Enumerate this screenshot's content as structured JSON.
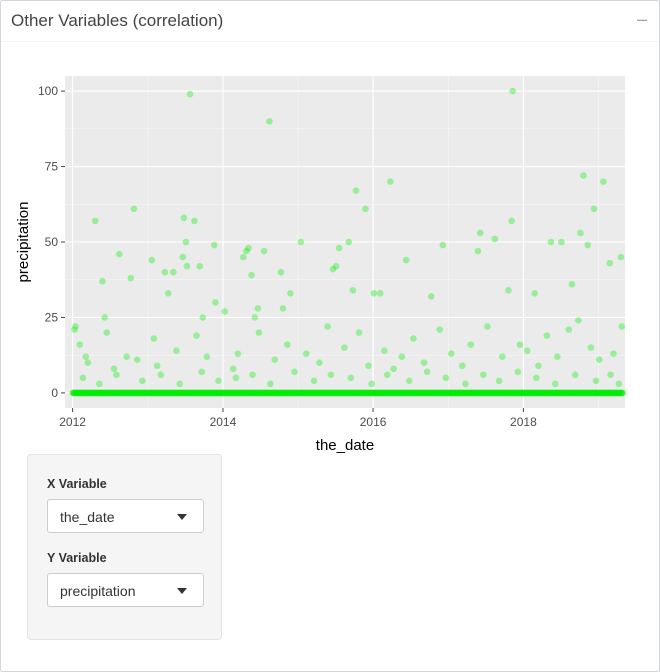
{
  "panel": {
    "title": "Other Variables (correlation)",
    "collapse_icon": "minus-icon"
  },
  "controls": {
    "x_label": "X Variable",
    "x_value": "the_date",
    "y_label": "Y Variable",
    "y_value": "precipitation"
  },
  "chart_data": {
    "type": "scatter",
    "xlabel": "the_date",
    "ylabel": "precipitation",
    "xlim": [
      "2011-11-25",
      "2019-05-10"
    ],
    "ylim": [
      -5,
      105
    ],
    "x_ticks": [
      "2012",
      "2014",
      "2016",
      "2018"
    ],
    "y_ticks": [
      0,
      25,
      50,
      75,
      100
    ],
    "grid": true,
    "point_color": "#00ee00",
    "point_opacity": 0.35,
    "panel_background": "#ebebeb",
    "points": [
      [
        "2012-01-10",
        21
      ],
      [
        "2012-01-15",
        22
      ],
      [
        "2012-02-05",
        16
      ],
      [
        "2012-03-05",
        12
      ],
      [
        "2012-04-20",
        57
      ],
      [
        "2012-05-25",
        37
      ],
      [
        "2012-06-05",
        25
      ],
      [
        "2012-06-15",
        20
      ],
      [
        "2012-08-15",
        46
      ],
      [
        "2012-09-20",
        12
      ],
      [
        "2012-10-10",
        38
      ],
      [
        "2012-10-25",
        61
      ],
      [
        "2013-01-20",
        44
      ],
      [
        "2013-01-30",
        18
      ],
      [
        "2013-03-25",
        40
      ],
      [
        "2013-04-10",
        33
      ],
      [
        "2013-05-05",
        40
      ],
      [
        "2013-06-20",
        45
      ],
      [
        "2013-06-25",
        58
      ],
      [
        "2013-07-05",
        50
      ],
      [
        "2013-07-10",
        42
      ],
      [
        "2013-07-25",
        99
      ],
      [
        "2013-08-15",
        57
      ],
      [
        "2013-09-10",
        42
      ],
      [
        "2013-09-25",
        25
      ],
      [
        "2013-11-20",
        49
      ],
      [
        "2013-11-25",
        30
      ],
      [
        "2014-01-10",
        27
      ],
      [
        "2014-04-10",
        45
      ],
      [
        "2014-04-25",
        47
      ],
      [
        "2014-05-05",
        48
      ],
      [
        "2014-05-20",
        39
      ],
      [
        "2014-06-05",
        25
      ],
      [
        "2014-06-20",
        28
      ],
      [
        "2014-07-20",
        47
      ],
      [
        "2014-08-15",
        90
      ],
      [
        "2014-10-10",
        40
      ],
      [
        "2014-10-20",
        28
      ],
      [
        "2014-11-25",
        33
      ],
      [
        "2015-01-15",
        50
      ],
      [
        "2015-06-20",
        41
      ],
      [
        "2015-07-05",
        42
      ],
      [
        "2015-07-20",
        48
      ],
      [
        "2015-09-05",
        50
      ],
      [
        "2015-09-25",
        34
      ],
      [
        "2015-10-10",
        67
      ],
      [
        "2015-11-25",
        61
      ],
      [
        "2016-01-05",
        33
      ],
      [
        "2016-02-05",
        33
      ],
      [
        "2016-03-25",
        70
      ],
      [
        "2016-06-10",
        44
      ],
      [
        "2016-10-10",
        32
      ],
      [
        "2016-12-05",
        49
      ],
      [
        "2017-05-25",
        47
      ],
      [
        "2017-06-05",
        53
      ],
      [
        "2017-08-15",
        51
      ],
      [
        "2017-10-20",
        34
      ],
      [
        "2017-11-05",
        57
      ],
      [
        "2017-11-10",
        100
      ],
      [
        "2017-12-15",
        16
      ],
      [
        "2018-02-25",
        33
      ],
      [
        "2018-05-15",
        50
      ],
      [
        "2018-07-05",
        50
      ],
      [
        "2018-08-25",
        36
      ],
      [
        "2018-10-05",
        53
      ],
      [
        "2018-10-20",
        72
      ],
      [
        "2018-11-10",
        49
      ],
      [
        "2018-12-10",
        61
      ],
      [
        "2019-01-25",
        70
      ],
      [
        "2019-02-25",
        43
      ],
      [
        "2019-04-20",
        45
      ],
      [
        "2012-03-15",
        10
      ],
      [
        "2012-07-20",
        8
      ],
      [
        "2012-11-10",
        11
      ],
      [
        "2013-02-15",
        9
      ],
      [
        "2013-05-20",
        14
      ],
      [
        "2013-08-25",
        19
      ],
      [
        "2013-10-15",
        12
      ],
      [
        "2014-02-20",
        8
      ],
      [
        "2014-03-15",
        13
      ],
      [
        "2014-06-25",
        20
      ],
      [
        "2014-09-10",
        11
      ],
      [
        "2014-11-10",
        16
      ],
      [
        "2015-02-10",
        13
      ],
      [
        "2015-04-15",
        10
      ],
      [
        "2015-05-25",
        22
      ],
      [
        "2015-08-15",
        15
      ],
      [
        "2015-10-25",
        20
      ],
      [
        "2015-12-10",
        9
      ],
      [
        "2016-02-25",
        14
      ],
      [
        "2016-04-10",
        8
      ],
      [
        "2016-05-20",
        12
      ],
      [
        "2016-07-15",
        18
      ],
      [
        "2016-09-05",
        10
      ],
      [
        "2016-11-20",
        21
      ],
      [
        "2017-01-15",
        13
      ],
      [
        "2017-03-10",
        9
      ],
      [
        "2017-04-20",
        16
      ],
      [
        "2017-07-10",
        22
      ],
      [
        "2017-09-20",
        12
      ],
      [
        "2018-01-20",
        14
      ],
      [
        "2018-03-15",
        9
      ],
      [
        "2018-04-25",
        19
      ],
      [
        "2018-06-15",
        12
      ],
      [
        "2018-08-10",
        21
      ],
      [
        "2018-09-25",
        24
      ],
      [
        "2018-11-25",
        15
      ],
      [
        "2019-01-05",
        11
      ],
      [
        "2019-03-15",
        13
      ],
      [
        "2019-04-25",
        22
      ],
      [
        "2012-02-20",
        5
      ],
      [
        "2012-05-10",
        3
      ],
      [
        "2012-08-01",
        6
      ],
      [
        "2012-12-05",
        4
      ],
      [
        "2013-03-05",
        6
      ],
      [
        "2013-06-05",
        3
      ],
      [
        "2013-09-20",
        7
      ],
      [
        "2013-12-10",
        4
      ],
      [
        "2014-03-05",
        5
      ],
      [
        "2014-05-25",
        6
      ],
      [
        "2014-08-20",
        3
      ],
      [
        "2014-12-15",
        7
      ],
      [
        "2015-03-20",
        4
      ],
      [
        "2015-06-10",
        6
      ],
      [
        "2015-09-15",
        5
      ],
      [
        "2015-12-25",
        3
      ],
      [
        "2016-03-10",
        6
      ],
      [
        "2016-06-25",
        4
      ],
      [
        "2016-09-20",
        7
      ],
      [
        "2016-12-20",
        5
      ],
      [
        "2017-03-25",
        3
      ],
      [
        "2017-06-20",
        6
      ],
      [
        "2017-09-05",
        4
      ],
      [
        "2017-12-05",
        7
      ],
      [
        "2018-03-05",
        5
      ],
      [
        "2018-06-05",
        3
      ],
      [
        "2018-09-10",
        6
      ],
      [
        "2018-12-20",
        4
      ],
      [
        "2019-03-01",
        6
      ],
      [
        "2019-04-10",
        3
      ]
    ],
    "baseline_points": {
      "value": 0,
      "from": "2012-01-01",
      "to": "2019-04-30",
      "frequency": "daily"
    }
  }
}
